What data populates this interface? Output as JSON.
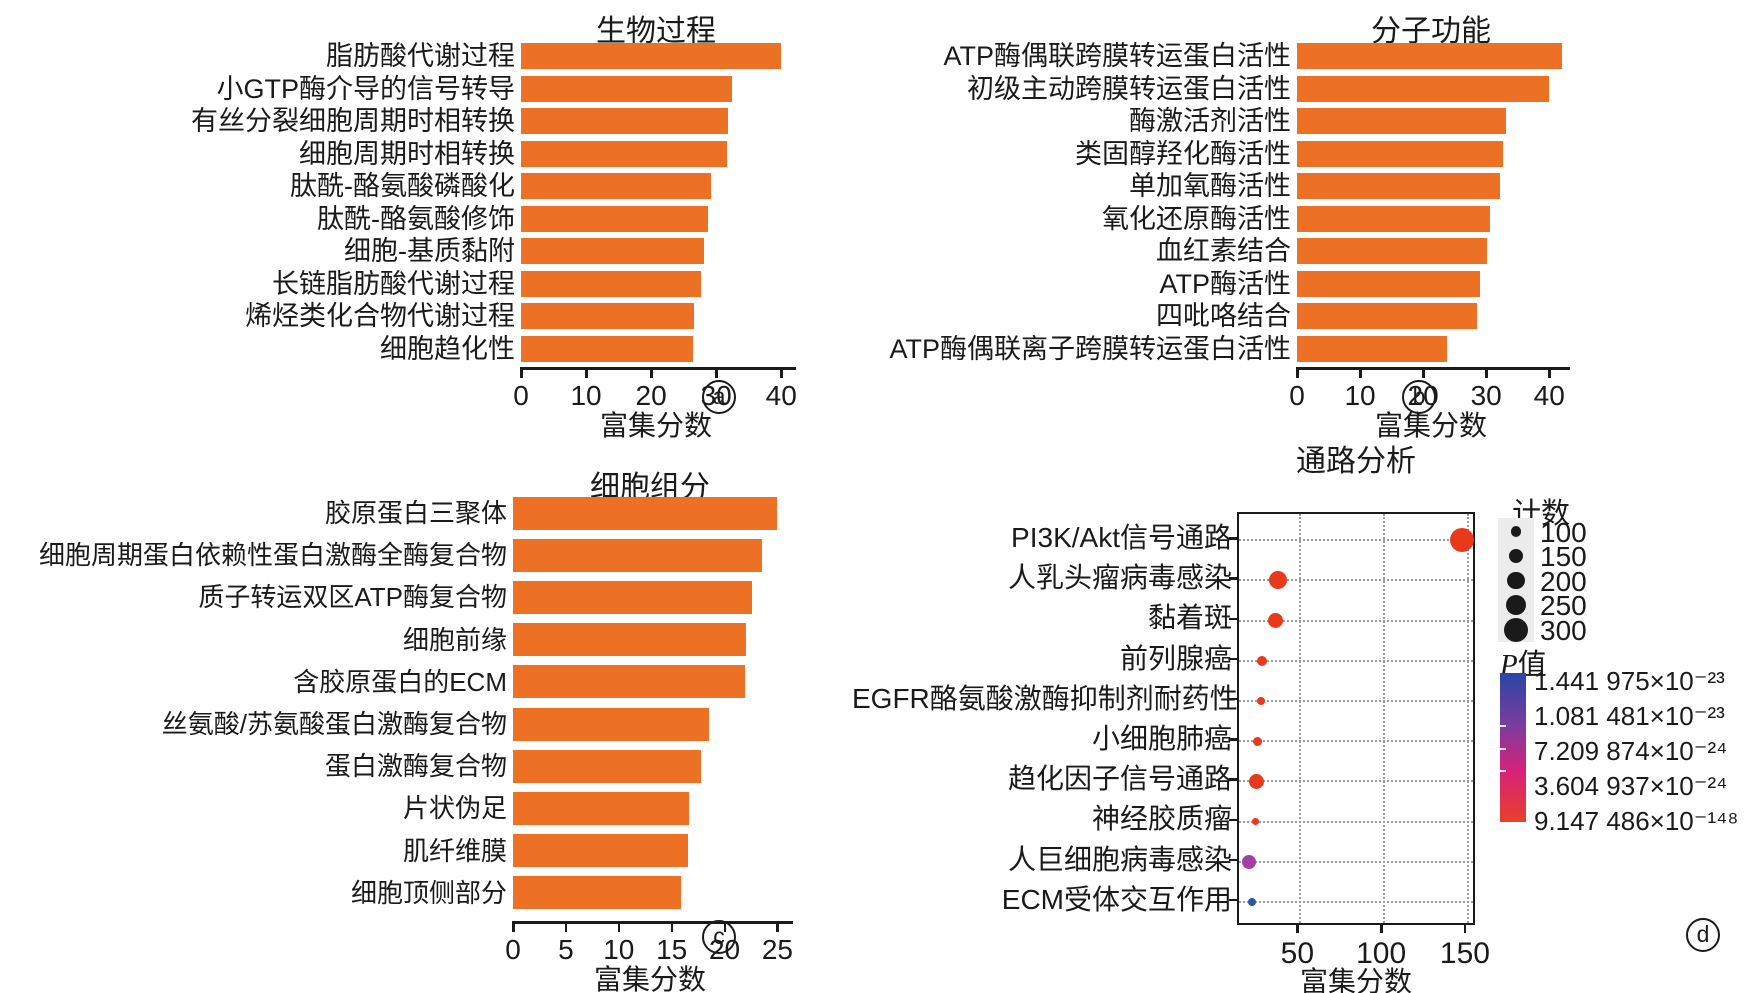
{
  "panel_letters": {
    "a": "a",
    "b": "b",
    "c": "c",
    "d": "d"
  },
  "chart_data": [
    {
      "panel": "a",
      "type": "bar",
      "title": "生物过程",
      "xlabel": "富集分数",
      "xticks": [
        0,
        10,
        20,
        30,
        40
      ],
      "xlim": [
        0,
        41.5
      ],
      "bar_color": "#ED7124",
      "categories": [
        "脂肪酸代谢过程",
        "小GTP酶介导的信号转导",
        "有丝分裂细胞周期时相转换",
        "细胞周期时相转换",
        "肽酰-酪氨酸磷酸化",
        "肽酰-酪氨酸修饰",
        "细胞-基质黏附",
        "长链脂肪酸代谢过程",
        "烯烃类化合物代谢过程",
        "细胞趋化性"
      ],
      "values": [
        40,
        32.5,
        31.8,
        31.7,
        29.2,
        28.8,
        28.1,
        27.7,
        26.6,
        26.5
      ]
    },
    {
      "panel": "b",
      "type": "bar",
      "title": "分子功能",
      "xlabel": "富集分数",
      "xticks": [
        0,
        10,
        20,
        30,
        40
      ],
      "xlim": [
        0,
        42.5
      ],
      "bar_color": "#ED7124",
      "categories": [
        "ATP酶偶联跨膜转运蛋白活性",
        "初级主动跨膜转运蛋白活性",
        "酶激活剂活性",
        "类固醇羟化酶活性",
        "单加氧酶活性",
        "氧化还原酶活性",
        "血红素结合",
        "ATP酶活性",
        "四吡咯结合",
        "ATP酶偶联离子跨膜转运蛋白活性"
      ],
      "values": [
        42,
        40,
        33.2,
        32.7,
        32.2,
        30.6,
        30.2,
        29,
        28.6,
        23.8
      ]
    },
    {
      "panel": "c",
      "type": "bar",
      "title": "细胞组分",
      "xlabel": "富集分数",
      "xticks": [
        0,
        5,
        10,
        15,
        20,
        25
      ],
      "xlim": [
        0,
        26
      ],
      "bar_color": "#ED7124",
      "categories": [
        "胶原蛋白三聚体",
        "细胞周期蛋白依赖性蛋白激酶全酶复合物",
        "质子转运双区ATP酶复合物",
        "细胞前缘",
        "含胶原蛋白的ECM",
        "丝氨酸/苏氨酸蛋白激酶复合物",
        "蛋白激酶复合物",
        "片状伪足",
        "肌纤维膜",
        "细胞顶侧部分"
      ],
      "values": [
        25,
        23.5,
        22.6,
        22,
        21.9,
        18.5,
        17.8,
        16.6,
        16.5,
        15.9
      ]
    },
    {
      "panel": "d",
      "type": "scatter",
      "title": "通路分析",
      "xlabel": "富集分数",
      "xticks": [
        50,
        100,
        150
      ],
      "xlim": [
        14,
        156
      ],
      "grid": true,
      "points": [
        {
          "label": "PI3K/Akt信号通路",
          "x": 147,
          "count": 300,
          "color": "#E8391D"
        },
        {
          "label": "人乳头瘤病毒感染",
          "x": 37,
          "count": 210,
          "color": "#E8391D"
        },
        {
          "label": "黏着斑",
          "x": 36,
          "count": 165,
          "color": "#E8391D"
        },
        {
          "label": "前列腺癌",
          "x": 27.5,
          "count": 90,
          "color": "#E8391D"
        },
        {
          "label": "EGFR酪氨酸激酶抑制剂耐药性",
          "x": 27,
          "count": 60,
          "color": "#E8391D"
        },
        {
          "label": "小细胞肺癌",
          "x": 25,
          "count": 75,
          "color": "#E8391D"
        },
        {
          "label": "趋化因子信号通路",
          "x": 24.5,
          "count": 165,
          "color": "#E8391D"
        },
        {
          "label": "神经胶质瘤",
          "x": 24,
          "count": 40,
          "color": "#E8391D"
        },
        {
          "label": "人巨细胞病毒感染",
          "x": 20,
          "count": 150,
          "color": "#A43F9F"
        },
        {
          "label": "ECM受体交互作用",
          "x": 21.5,
          "count": 60,
          "color": "#2B54A7"
        }
      ],
      "legend": {
        "count_title": "计数",
        "count_items": [
          100,
          150,
          200,
          250,
          300
        ],
        "count_dot_color": "#1a1a1a",
        "pvalue_title_italic": "P",
        "pvalue_title_rest": "值",
        "pvalue_labels": [
          "1.441 975×10⁻²³",
          "1.081 481×10⁻²³",
          "7.209 874×10⁻²⁴",
          "3.604 937×10⁻²⁴",
          "9.147 486×10⁻¹⁴⁸"
        ],
        "colorbar_colors": [
          "#2B46A8",
          "#7A3D9E",
          "#D6217C",
          "#E8402A"
        ]
      }
    }
  ]
}
